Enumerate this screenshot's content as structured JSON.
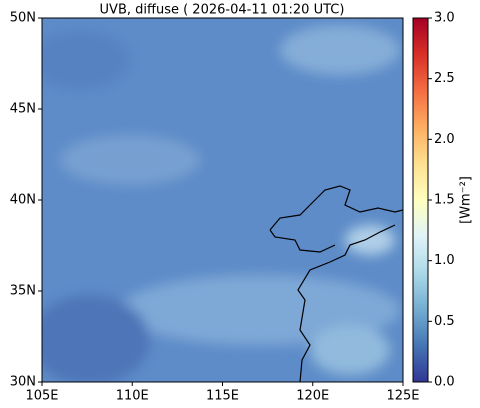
{
  "map": {
    "title": "UVB, diffuse ( 2026-04-11 01:20 UTC)",
    "xlim": [
      105,
      125
    ],
    "ylim": [
      30,
      50
    ],
    "lon_ticks": [
      {
        "value": 105,
        "label": "105E"
      },
      {
        "value": 110,
        "label": "110E"
      },
      {
        "value": 115,
        "label": "115E"
      },
      {
        "value": 120,
        "label": "120E"
      },
      {
        "value": 125,
        "label": "125E"
      }
    ],
    "lat_ticks": [
      {
        "value": 30,
        "label": "30N"
      },
      {
        "value": 35,
        "label": "35N"
      },
      {
        "value": 40,
        "label": "40N"
      },
      {
        "value": 45,
        "label": "45N"
      },
      {
        "value": 50,
        "label": "50N"
      }
    ],
    "colorbar": {
      "label": "[Wm⁻²]",
      "lim": [
        0,
        3
      ],
      "ticks": [
        {
          "value": 0,
          "label": "0.0"
        },
        {
          "value": 0.5,
          "label": "0.5"
        },
        {
          "value": 1,
          "label": "1.0"
        },
        {
          "value": 1.5,
          "label": "1.5"
        },
        {
          "value": 2,
          "label": "2.0"
        },
        {
          "value": 2.5,
          "label": "2.5"
        },
        {
          "value": 3,
          "label": "3.0"
        }
      ]
    }
  }
}
